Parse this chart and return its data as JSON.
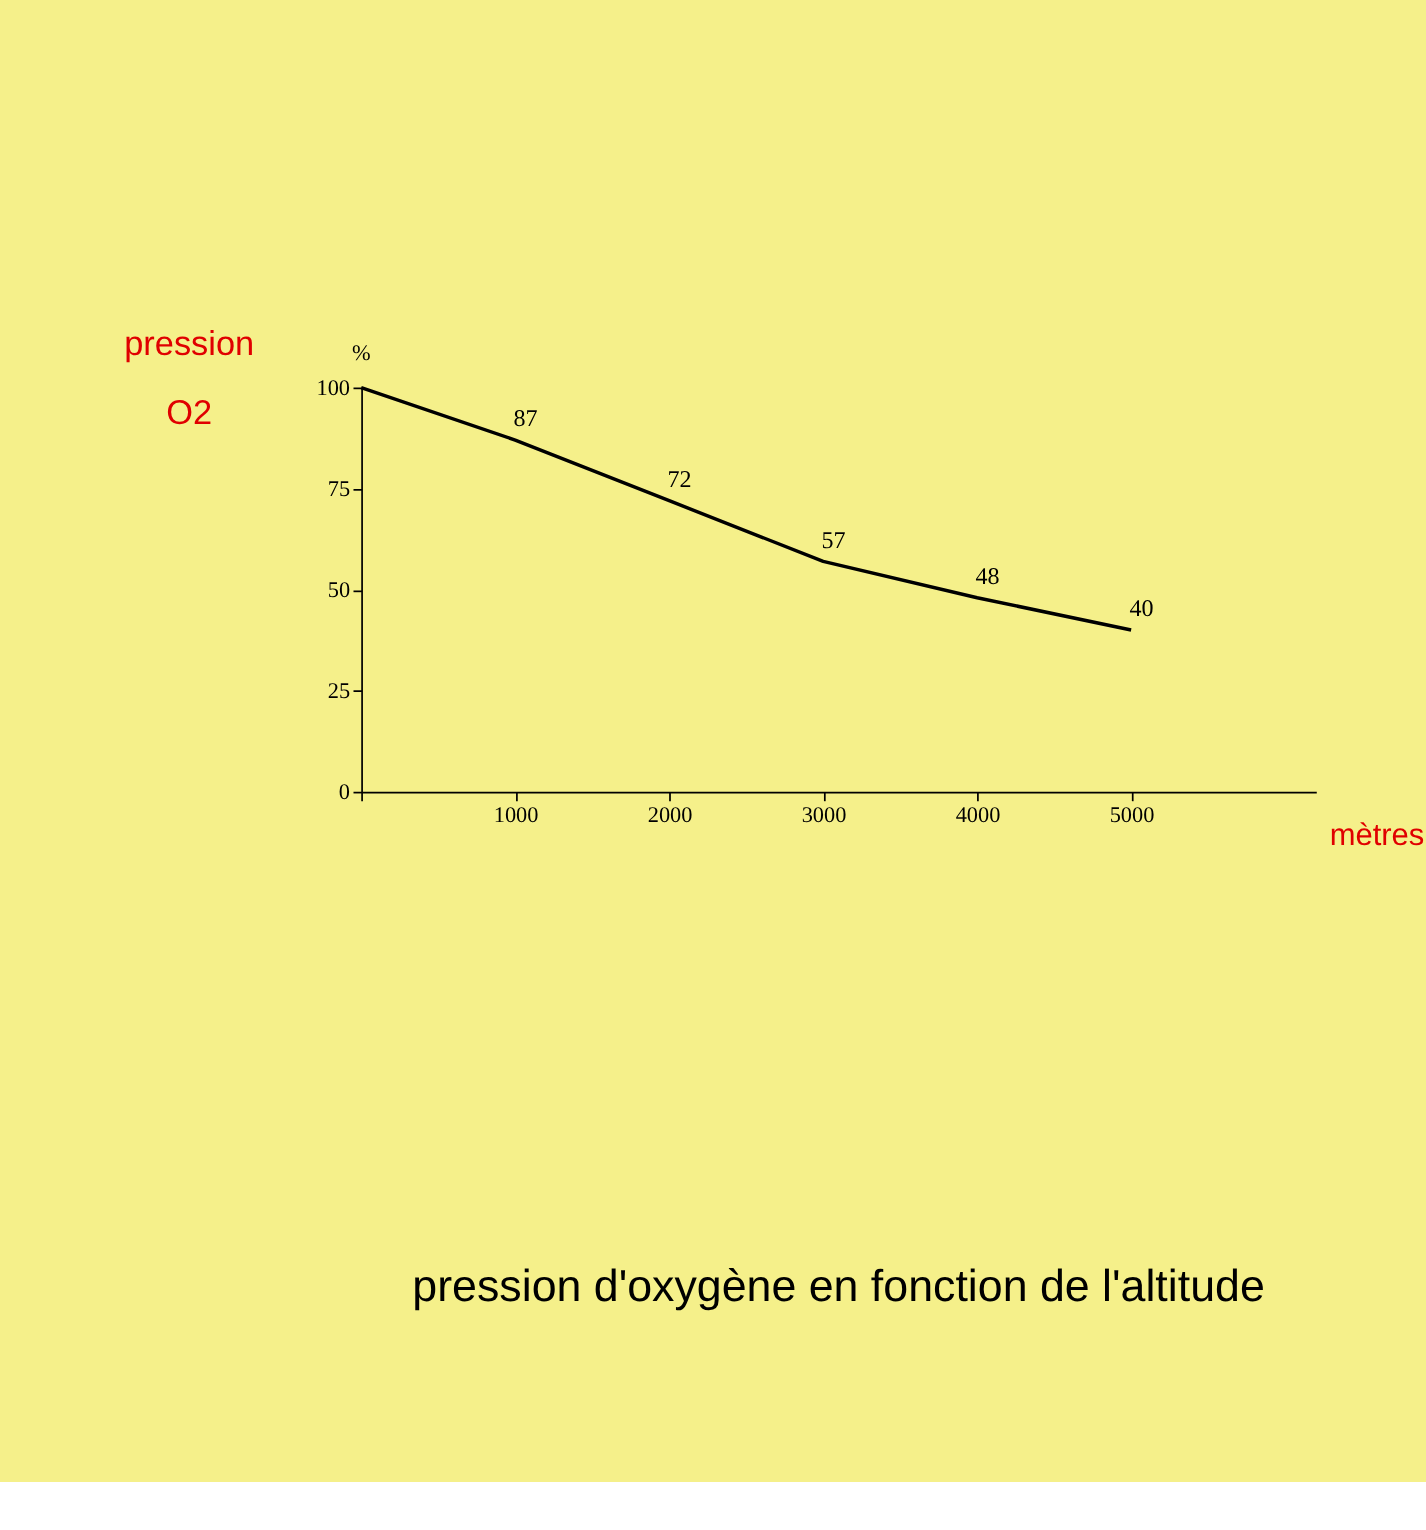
{
  "chart_data": {
    "type": "line",
    "title": "pression d'oxygène en fonction de l'altitude",
    "xlabel": "mètres",
    "ylabel": "pression O2",
    "annotations": [
      "%"
    ],
    "x": [
      0,
      1000,
      2000,
      3000,
      4000,
      5000
    ],
    "series": [
      {
        "color": "#000000",
        "values": [
          100,
          87,
          72,
          57,
          48,
          40
        ],
        "value_labels": [
          null,
          "87",
          "72",
          "57",
          "48",
          "40"
        ]
      }
    ],
    "xlim": [
      0,
      6200
    ],
    "xticks": [
      {
        "value": 0,
        "label": null
      },
      1000,
      2000,
      3000,
      4000,
      5000
    ],
    "ylim": [
      0,
      100
    ],
    "yticks": [
      0,
      25,
      50,
      75,
      100
    ],
    "grid": false,
    "marker": "none",
    "line_style": "solid"
  }
}
